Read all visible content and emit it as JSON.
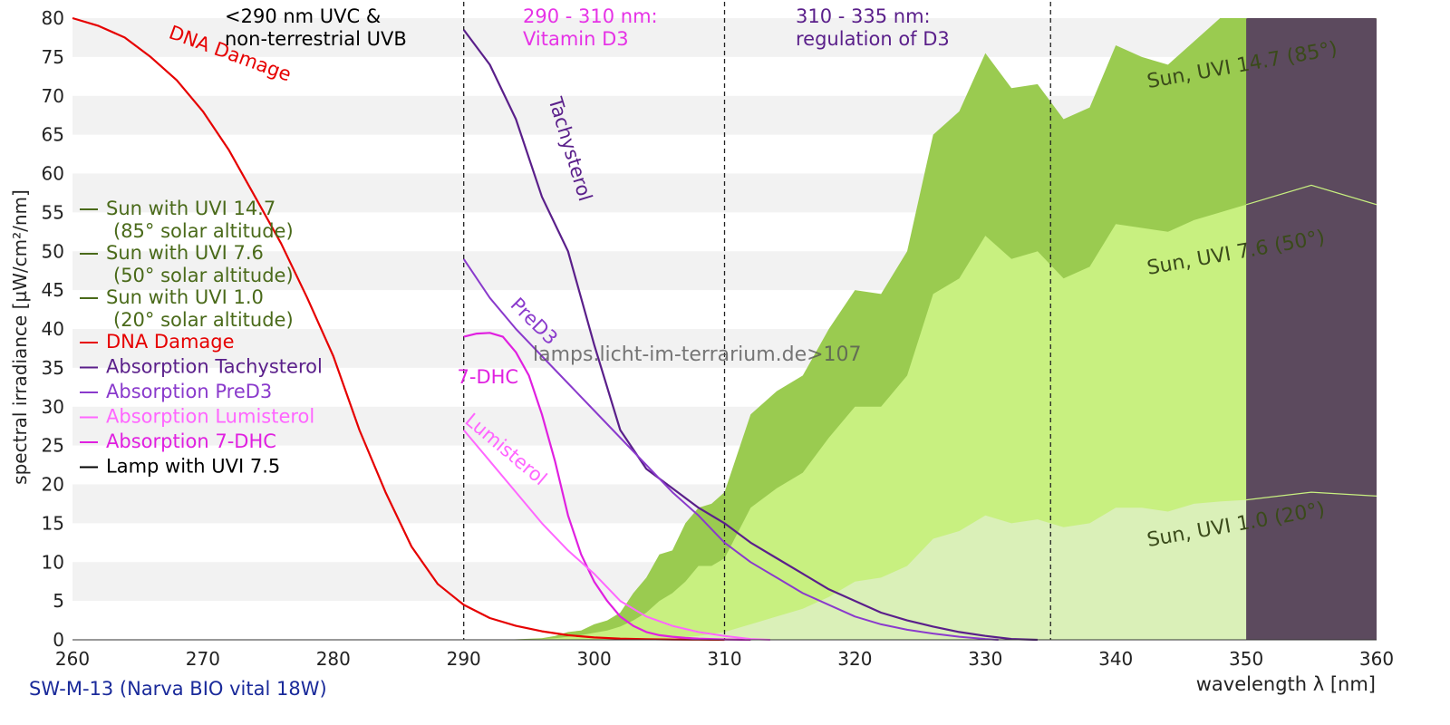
{
  "chart_data": {
    "type": "area",
    "title": "",
    "xlabel": "wavelength λ [nm]",
    "ylabel": "spectral irradiance [µW/cm²/nm]",
    "xlim": [
      260,
      360
    ],
    "ylim": [
      0,
      80
    ],
    "x_ticks": [
      "260",
      "270",
      "280",
      "290",
      "300",
      "310",
      "320",
      "330",
      "340",
      "350",
      "360"
    ],
    "y_ticks": [
      "0",
      "5",
      "10",
      "15",
      "20",
      "25",
      "30",
      "35",
      "40",
      "45",
      "50",
      "55",
      "60",
      "65",
      "70",
      "75",
      "80"
    ],
    "grid": "horizontal bands",
    "legend_position": "left",
    "caption": "SW-M-13 (Narva BIO vital 18W)",
    "watermark": "lamps.licht-im-terrarium.de>107",
    "region_boundaries": [
      290,
      310,
      335
    ],
    "region_labels": [
      {
        "line1": "<290 nm UVC &",
        "line2": "non-terrestrial UVB",
        "color": "#000000"
      },
      {
        "line1": "290 - 310 nm:",
        "line2": "Vitamin D3",
        "color": "#e633e6"
      },
      {
        "line1": "310 - 335 nm:",
        "line2": "regulation of D3",
        "color": "#5a1f8a"
      }
    ],
    "shaded_region": {
      "x_from": 350,
      "x_to": 360,
      "color": "#5c4a5e"
    },
    "legend": [
      {
        "label": "Sun with UVI 14.7",
        "sub": "(85° solar altitude)",
        "color": "#4a6a1a"
      },
      {
        "label": "Sun with UVI 7.6",
        "sub": "(50° solar altitude)",
        "color": "#4a6a1a"
      },
      {
        "label": "Sun with UVI 1.0",
        "sub": "(20° solar altitude)",
        "color": "#4a6a1a"
      },
      {
        "label": "DNA Damage",
        "color": "#e60000"
      },
      {
        "label": "Absorption Tachysterol",
        "color": "#5a1f8a"
      },
      {
        "label": "Absorption PreD3",
        "color": "#8a3acc"
      },
      {
        "label": "Absorption Lumisterol",
        "color": "#ff66ff"
      },
      {
        "label": "Absorption 7-DHC",
        "color": "#e020e0"
      },
      {
        "label": "Lamp with UVI 7.5",
        "color": "#000000"
      }
    ],
    "areas": [
      {
        "name": "Sun, UVI 14.7 (85°)",
        "color": "#9acb50",
        "x": [
          293,
          296,
          297,
          298,
          299,
          300,
          301,
          302,
          303,
          304,
          305,
          306,
          307,
          308,
          309,
          310,
          312,
          314,
          316,
          318,
          320,
          322,
          324,
          326,
          328,
          330,
          332,
          334,
          336,
          338,
          340,
          342,
          344,
          346,
          348,
          350,
          355,
          360
        ],
        "y": [
          0,
          0.2,
          0.5,
          1,
          1.2,
          2,
          2.5,
          3.5,
          6,
          8,
          11,
          11.5,
          15,
          17,
          17.5,
          19,
          29,
          32,
          34,
          40,
          45,
          44.5,
          50,
          65,
          68,
          75.5,
          71,
          71.5,
          67,
          68.5,
          76.5,
          75,
          74,
          77,
          80,
          80,
          84,
          80
        ]
      },
      {
        "name": "Sun, UVI 7.6 (50°)",
        "color": "#c8f080",
        "x": [
          294,
          296,
          297,
          298,
          299,
          300,
          301,
          302,
          303,
          304,
          305,
          306,
          307,
          308,
          309,
          310,
          312,
          314,
          316,
          318,
          320,
          322,
          324,
          326,
          328,
          330,
          332,
          334,
          336,
          338,
          340,
          342,
          344,
          346,
          348,
          350,
          355,
          360
        ],
        "y": [
          0,
          0.1,
          0.2,
          0.4,
          0.6,
          0.9,
          1.2,
          1.7,
          2.5,
          3.5,
          5,
          6,
          7.5,
          9.5,
          9.5,
          10.5,
          17,
          19.5,
          21.5,
          26,
          30,
          30,
          34,
          44.5,
          46.5,
          52,
          49,
          50,
          46.5,
          48,
          53.5,
          53,
          52.5,
          54,
          55,
          56,
          58.5,
          56
        ]
      },
      {
        "name": "Sun, UVI 1.0 (20°)",
        "color": "#daf0b8",
        "x": [
          304,
          306,
          308,
          310,
          312,
          314,
          316,
          318,
          320,
          322,
          324,
          326,
          328,
          330,
          332,
          334,
          336,
          338,
          340,
          342,
          344,
          346,
          348,
          350,
          355,
          360
        ],
        "y": [
          0,
          0.2,
          0.5,
          1,
          2,
          3,
          4,
          5.5,
          7.5,
          8,
          9.5,
          13,
          14,
          16,
          15,
          15.5,
          14.5,
          15,
          17,
          17,
          16.5,
          17.5,
          17.8,
          18,
          19,
          18.5
        ]
      }
    ],
    "area_labels": [
      {
        "text": "Sun, UVI 14.7 (85°)",
        "x": 342.5,
        "y": 71
      },
      {
        "text": "Sun, UVI 7.6 (50°)",
        "x": 342.5,
        "y": 47
      },
      {
        "text": "Sun, UVI 1.0 (20°)",
        "x": 342.5,
        "y": 12
      }
    ],
    "series": [
      {
        "name": "DNA Damage",
        "color": "#e60000",
        "width": 2.2,
        "x": [
          260,
          262,
          264,
          266,
          268,
          270,
          272,
          274,
          276,
          278,
          280,
          282,
          284,
          286,
          288,
          290,
          292,
          294,
          296,
          298,
          300,
          302,
          304,
          306,
          308,
          310
        ],
        "y": [
          80,
          79,
          77.5,
          75,
          72,
          68,
          63,
          57,
          51,
          44,
          36.5,
          27,
          19,
          12,
          7.2,
          4.5,
          2.8,
          1.8,
          1.1,
          0.6,
          0.3,
          0.15,
          0.08,
          0.04,
          0.02,
          0
        ]
      },
      {
        "name": "Absorption Tachysterol",
        "color": "#5a1f8a",
        "width": 2.2,
        "x": [
          290,
          292,
          294,
          296,
          298,
          300,
          302,
          304,
          306,
          308,
          310,
          312,
          314,
          316,
          318,
          320,
          322,
          324,
          326,
          328,
          330,
          332,
          334
        ],
        "y": [
          78.5,
          74,
          67,
          57,
          50,
          38,
          27,
          22,
          19.5,
          17,
          15,
          12.5,
          10.5,
          8.5,
          6.5,
          5,
          3.5,
          2.5,
          1.7,
          1,
          0.5,
          0.1,
          0
        ]
      },
      {
        "name": "Absorption PreD3",
        "color": "#8a3acc",
        "width": 2,
        "x": [
          290,
          292,
          294,
          296,
          298,
          300,
          302,
          304,
          306,
          308,
          310,
          312,
          314,
          316,
          318,
          320,
          322,
          324,
          326,
          328,
          330,
          331
        ],
        "y": [
          49,
          44,
          40,
          36.5,
          33,
          29.5,
          26,
          22.5,
          19,
          16,
          12.5,
          10,
          8,
          6,
          4.5,
          3,
          2,
          1.3,
          0.8,
          0.4,
          0.1,
          0
        ]
      },
      {
        "name": "Absorption 7-DHC",
        "color": "#e020e0",
        "width": 2.2,
        "x": [
          290,
          291,
          292,
          293,
          294,
          295,
          296,
          297,
          298,
          299,
          300,
          301,
          302,
          303,
          304,
          305,
          306,
          307,
          308,
          310,
          312
        ],
        "y": [
          39,
          39.4,
          39.5,
          39,
          37,
          34,
          29,
          23,
          16,
          11,
          7.5,
          5,
          3,
          1.8,
          1,
          0.6,
          0.4,
          0.25,
          0.15,
          0.05,
          0
        ]
      },
      {
        "name": "Absorption Lumisterol",
        "color": "#ff66ff",
        "width": 2,
        "x": [
          290,
          292,
          294,
          296,
          298,
          300,
          302,
          304,
          306,
          308,
          310,
          312,
          313.5
        ],
        "y": [
          27,
          23,
          19,
          15,
          11.5,
          8.5,
          5,
          3,
          1.8,
          1,
          0.5,
          0.1,
          0
        ]
      }
    ],
    "curve_labels": [
      {
        "text": "DNA Damage",
        "x": 267.3,
        "y": 77.5,
        "angle": 20,
        "color": "#e60000"
      },
      {
        "text": "Tachysterol",
        "x": 296.5,
        "y": 69.5,
        "angle": 73,
        "color": "#5a1f8a"
      },
      {
        "text": "PreD3",
        "x": 293.5,
        "y": 43,
        "angle": 45,
        "color": "#8a3acc"
      },
      {
        "text": "7-DHC",
        "x": 289.5,
        "y": 33,
        "angle": 0,
        "color": "#e020e0"
      },
      {
        "text": "Lumisterol",
        "x": 290,
        "y": 28,
        "angle": 40,
        "color": "#ff66ff"
      }
    ]
  }
}
